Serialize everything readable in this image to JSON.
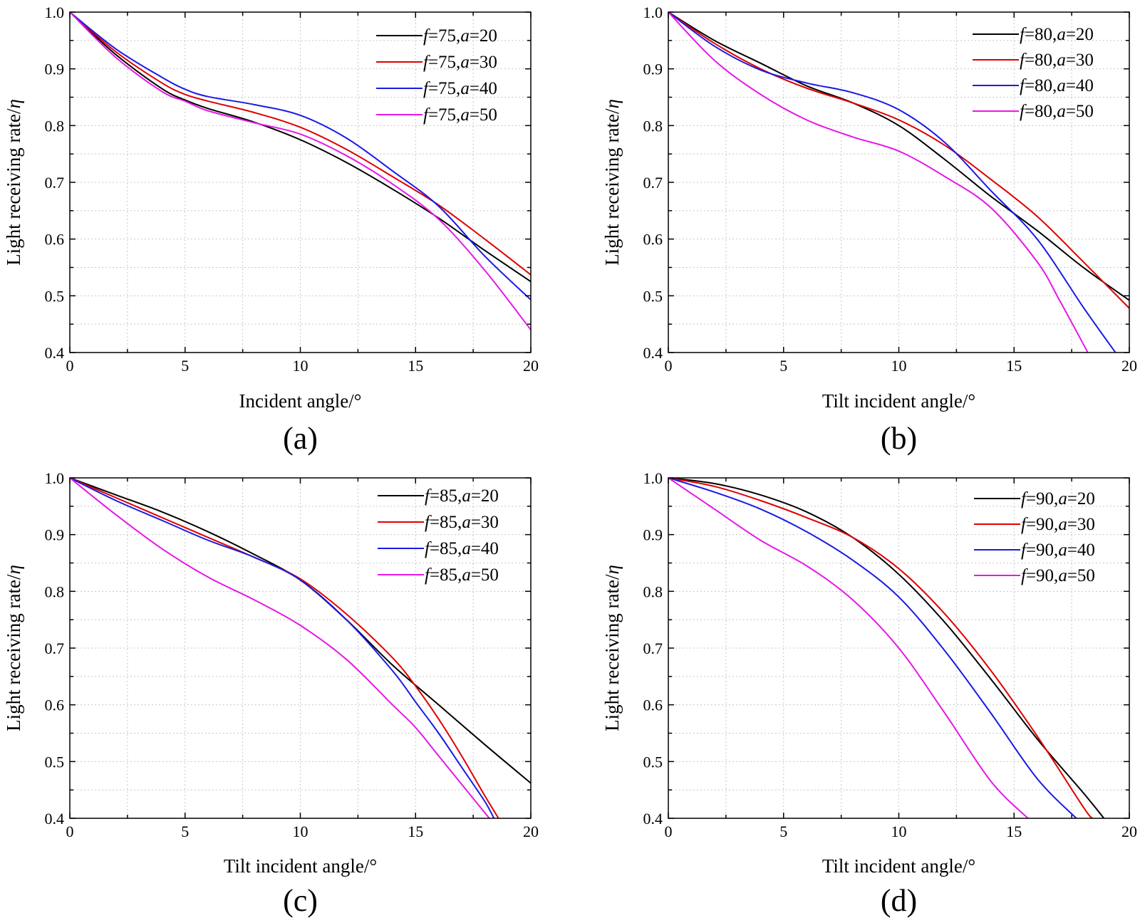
{
  "chart_data": [
    {
      "type": "line",
      "panel_label": "(a)",
      "xlabel": "Incident angle/°",
      "ylabel": "Light receiving rate/η",
      "xlim": [
        0,
        20
      ],
      "ylim": [
        0.4,
        1.0
      ],
      "xticks": [
        "0",
        "5",
        "10",
        "15",
        "20"
      ],
      "yticks": [
        "0.4",
        "0.5",
        "0.6",
        "0.7",
        "0.8",
        "0.9",
        "1.0"
      ],
      "grid": true,
      "legend_position": "top-right",
      "series": [
        {
          "name": "f=75,a=20",
          "f": "75",
          "a": "20",
          "color": "#000000",
          "x": [
            0,
            2,
            4,
            5,
            6,
            8,
            10,
            12,
            14,
            16,
            18,
            20
          ],
          "y": [
            1.0,
            0.925,
            0.865,
            0.845,
            0.83,
            0.806,
            0.775,
            0.735,
            0.688,
            0.637,
            0.58,
            0.525
          ]
        },
        {
          "name": "f=75,a=30",
          "f": "75",
          "a": "30",
          "color": "#e00000",
          "x": [
            0,
            2,
            4,
            5,
            6,
            8,
            10,
            12,
            14,
            16,
            18,
            20
          ],
          "y": [
            1.0,
            0.93,
            0.875,
            0.855,
            0.843,
            0.823,
            0.797,
            0.758,
            0.71,
            0.66,
            0.6,
            0.537
          ]
        },
        {
          "name": "f=75,a=40",
          "f": "75",
          "a": "40",
          "color": "#1a1ae6",
          "x": [
            0,
            2,
            4,
            5,
            6,
            8,
            10,
            12,
            14,
            16,
            18,
            20
          ],
          "y": [
            1.0,
            0.935,
            0.885,
            0.864,
            0.851,
            0.837,
            0.818,
            0.778,
            0.72,
            0.658,
            0.57,
            0.493
          ]
        },
        {
          "name": "f=75,a=50",
          "f": "75",
          "a": "50",
          "color": "#e619e6",
          "x": [
            0,
            2,
            4,
            5,
            6,
            8,
            10,
            12,
            14,
            16,
            18,
            20
          ],
          "y": [
            1.0,
            0.92,
            0.86,
            0.843,
            0.826,
            0.805,
            0.785,
            0.747,
            0.697,
            0.635,
            0.545,
            0.44
          ]
        }
      ]
    },
    {
      "type": "line",
      "panel_label": "(b)",
      "xlabel": "Tilt incident angle/°",
      "ylabel": "Light receiving rate/η",
      "xlim": [
        0,
        20
      ],
      "ylim": [
        0.4,
        1.0
      ],
      "xticks": [
        "0",
        "5",
        "10",
        "15",
        "20"
      ],
      "yticks": [
        "0.4",
        "0.5",
        "0.6",
        "0.7",
        "0.8",
        "0.9",
        "1.0"
      ],
      "grid": true,
      "legend_position": "top-right",
      "series": [
        {
          "name": "f=80,a=20",
          "f": "80",
          "a": "20",
          "color": "#000000",
          "x": [
            0,
            2,
            4,
            6,
            8,
            10,
            12,
            14,
            16,
            18,
            20
          ],
          "y": [
            1.0,
            0.95,
            0.91,
            0.87,
            0.84,
            0.8,
            0.74,
            0.675,
            0.615,
            0.55,
            0.492
          ]
        },
        {
          "name": "f=80,a=30",
          "f": "80",
          "a": "30",
          "color": "#e00000",
          "x": [
            0,
            2,
            4,
            6,
            8,
            10,
            12,
            14,
            16,
            18,
            20
          ],
          "y": [
            1.0,
            0.945,
            0.9,
            0.866,
            0.84,
            0.81,
            0.765,
            0.705,
            0.64,
            0.56,
            0.478
          ]
        },
        {
          "name": "f=80,a=40",
          "f": "80",
          "a": "40",
          "color": "#1a1ae6",
          "x": [
            0,
            2,
            4,
            6,
            8,
            10,
            12,
            14,
            16,
            18,
            19.4
          ],
          "y": [
            1.0,
            0.94,
            0.898,
            0.875,
            0.858,
            0.828,
            0.77,
            0.685,
            0.6,
            0.48,
            0.4
          ]
        },
        {
          "name": "f=80,a=50",
          "f": "80",
          "a": "50",
          "color": "#e619e6",
          "x": [
            0,
            2,
            4,
            6,
            8,
            10,
            12,
            14,
            16,
            17,
            18.2
          ],
          "y": [
            1.0,
            0.915,
            0.855,
            0.81,
            0.78,
            0.755,
            0.71,
            0.655,
            0.56,
            0.49,
            0.4
          ]
        }
      ]
    },
    {
      "type": "line",
      "panel_label": "(c)",
      "xlabel": "Tilt incident angle/°",
      "ylabel": "Light receiving rate/η",
      "xlim": [
        0,
        20
      ],
      "ylim": [
        0.4,
        1.0
      ],
      "xticks": [
        "0",
        "5",
        "10",
        "15",
        "20"
      ],
      "yticks": [
        "0.4",
        "0.5",
        "0.6",
        "0.7",
        "0.8",
        "0.9",
        "1.0"
      ],
      "grid": true,
      "legend_position": "top-right",
      "series": [
        {
          "name": "f=85,a=20",
          "f": "85",
          "a": "20",
          "color": "#000000",
          "x": [
            0,
            2,
            4,
            6,
            8,
            10,
            12,
            14,
            16,
            18,
            20
          ],
          "y": [
            1.0,
            0.97,
            0.94,
            0.905,
            0.865,
            0.82,
            0.75,
            0.67,
            0.6,
            0.53,
            0.462
          ]
        },
        {
          "name": "f=85,a=30",
          "f": "85",
          "a": "30",
          "color": "#e00000",
          "x": [
            0,
            2,
            4,
            6,
            8,
            10,
            12,
            14,
            15,
            16,
            17,
            18,
            18.6
          ],
          "y": [
            1.0,
            0.965,
            0.93,
            0.895,
            0.86,
            0.822,
            0.76,
            0.683,
            0.633,
            0.575,
            0.51,
            0.44,
            0.4
          ]
        },
        {
          "name": "f=85,a=40",
          "f": "85",
          "a": "40",
          "color": "#1a1ae6",
          "x": [
            0,
            2,
            4,
            6,
            8,
            10,
            12,
            14,
            15,
            16,
            17,
            18,
            18.4
          ],
          "y": [
            1.0,
            0.96,
            0.925,
            0.89,
            0.86,
            0.82,
            0.75,
            0.66,
            0.605,
            0.55,
            0.49,
            0.43,
            0.4
          ]
        },
        {
          "name": "f=85,a=50",
          "f": "85",
          "a": "50",
          "color": "#e619e6",
          "x": [
            0,
            2,
            4,
            6,
            8,
            10,
            12,
            14,
            15,
            16,
            17,
            18.2
          ],
          "y": [
            1.0,
            0.935,
            0.875,
            0.825,
            0.785,
            0.74,
            0.68,
            0.6,
            0.56,
            0.51,
            0.46,
            0.4
          ]
        }
      ]
    },
    {
      "type": "line",
      "panel_label": "(d)",
      "xlabel": "Tilt incident angle/°",
      "ylabel": "Light receiving rate/η",
      "xlim": [
        0,
        20
      ],
      "ylim": [
        0.4,
        1.0
      ],
      "xticks": [
        "0",
        "5",
        "10",
        "15",
        "20"
      ],
      "yticks": [
        "0.4",
        "0.5",
        "0.6",
        "0.7",
        "0.8",
        "0.9",
        "1.0"
      ],
      "grid": true,
      "legend_position": "top-right",
      "series": [
        {
          "name": "f=90,a=20",
          "f": "90",
          "a": "20",
          "color": "#000000",
          "x": [
            0,
            2,
            4,
            6,
            8,
            10,
            12,
            14,
            16,
            18,
            18.9
          ],
          "y": [
            1.0,
            0.99,
            0.97,
            0.94,
            0.895,
            0.83,
            0.745,
            0.645,
            0.54,
            0.445,
            0.4
          ]
        },
        {
          "name": "f=90,a=30",
          "f": "90",
          "a": "30",
          "color": "#e00000",
          "x": [
            0,
            2,
            4,
            6,
            8,
            10,
            12,
            14,
            16,
            18,
            18.4
          ],
          "y": [
            1.0,
            0.985,
            0.96,
            0.93,
            0.895,
            0.84,
            0.76,
            0.66,
            0.545,
            0.42,
            0.4
          ]
        },
        {
          "name": "f=90,a=40",
          "f": "90",
          "a": "40",
          "color": "#1a1ae6",
          "x": [
            0,
            2,
            4,
            6,
            8,
            10,
            12,
            14,
            16,
            17.7
          ],
          "y": [
            1.0,
            0.975,
            0.945,
            0.905,
            0.855,
            0.79,
            0.695,
            0.585,
            0.47,
            0.4
          ]
        },
        {
          "name": "f=90,a=50",
          "f": "90",
          "a": "50",
          "color": "#e619e6",
          "x": [
            0,
            2,
            4,
            6,
            8,
            10,
            12,
            14,
            15.6
          ],
          "y": [
            1.0,
            0.945,
            0.89,
            0.845,
            0.785,
            0.7,
            0.585,
            0.465,
            0.4
          ]
        }
      ]
    }
  ]
}
